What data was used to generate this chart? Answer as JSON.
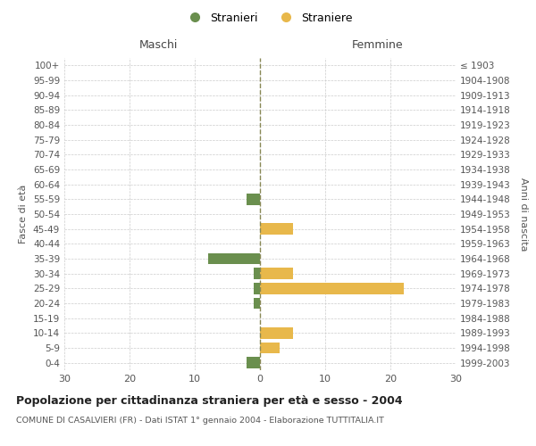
{
  "age_groups": [
    "0-4",
    "5-9",
    "10-14",
    "15-19",
    "20-24",
    "25-29",
    "30-34",
    "35-39",
    "40-44",
    "45-49",
    "50-54",
    "55-59",
    "60-64",
    "65-69",
    "70-74",
    "75-79",
    "80-84",
    "85-89",
    "90-94",
    "95-99",
    "100+"
  ],
  "birth_years": [
    "1999-2003",
    "1994-1998",
    "1989-1993",
    "1984-1988",
    "1979-1983",
    "1974-1978",
    "1969-1973",
    "1964-1968",
    "1959-1963",
    "1954-1958",
    "1949-1953",
    "1944-1948",
    "1939-1943",
    "1934-1938",
    "1929-1933",
    "1924-1928",
    "1919-1923",
    "1914-1918",
    "1909-1913",
    "1904-1908",
    "≤ 1903"
  ],
  "maschi": [
    2,
    0,
    0,
    0,
    1,
    1,
    1,
    8,
    0,
    0,
    0,
    2,
    0,
    0,
    0,
    0,
    0,
    0,
    0,
    0,
    0
  ],
  "femmine": [
    0,
    3,
    5,
    0,
    0,
    22,
    5,
    0,
    0,
    5,
    0,
    0,
    0,
    0,
    0,
    0,
    0,
    0,
    0,
    0,
    0
  ],
  "maschi_color": "#6a8f4e",
  "femmine_color": "#e8b84b",
  "title": "Popolazione per cittadinanza straniera per età e sesso - 2004",
  "subtitle": "COMUNE DI CASALVIERI (FR) - Dati ISTAT 1° gennaio 2004 - Elaborazione TUTTITALIA.IT",
  "xlabel_left": "Maschi",
  "xlabel_right": "Femmine",
  "ylabel_left": "Fasce di età",
  "ylabel_right": "Anni di nascita",
  "legend_maschi": "Stranieri",
  "legend_femmine": "Straniere",
  "xlim": 30,
  "background_color": "#ffffff",
  "grid_color": "#cccccc",
  "bar_height": 0.75
}
